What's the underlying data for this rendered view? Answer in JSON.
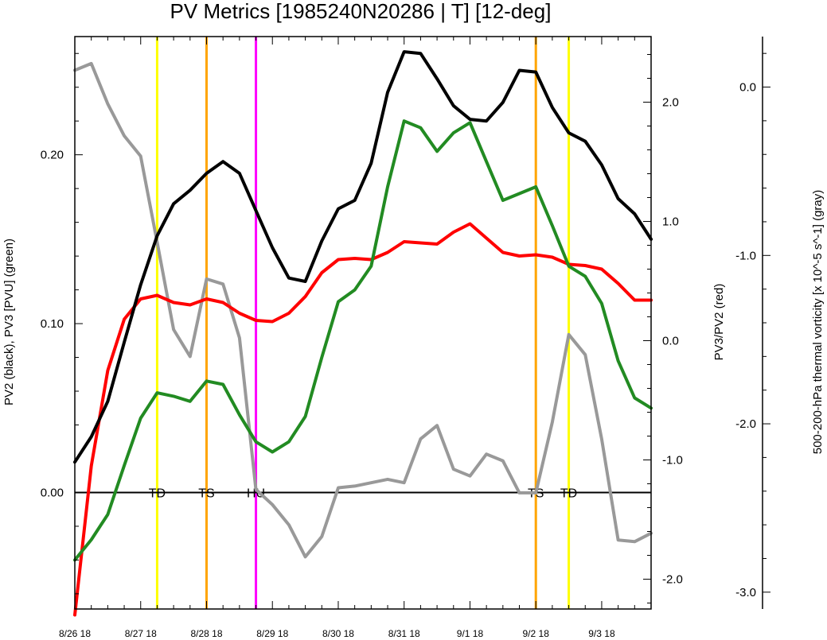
{
  "chart_data": {
    "type": "line",
    "title": "PV Metrics [1985240N20286 | T] [12-deg]",
    "x_ticks": [
      "8/26 18",
      "8/27 18",
      "8/28 18",
      "8/29 18",
      "8/30 18",
      "8/31 18",
      "9/1 18",
      "9/2 18",
      "9/3 18"
    ],
    "x_range_days": [
      0,
      8.75
    ],
    "left_axis": {
      "label": "PV2 (black), PV3 [PVU] (green)",
      "ylim": [
        -0.069,
        0.27
      ],
      "ticks": [
        "0.00",
        "0.10",
        "0.20"
      ],
      "tick_values": [
        0.0,
        0.1,
        0.2
      ]
    },
    "right_axis": {
      "label": "PV3/PV2 (red)",
      "ylim": [
        -2.25,
        2.55
      ],
      "ticks": [
        "-2.0",
        "-1.0",
        "0.0",
        "1.0",
        "2.0"
      ],
      "tick_values": [
        -2.0,
        -1.0,
        0.0,
        1.0,
        2.0
      ]
    },
    "far_right_axis": {
      "label": "500-200-hPa thermal vorticity [x 10^-5 s^-1] (gray)",
      "ylim": [
        -3.1,
        0.3
      ],
      "ticks": [
        "-3.0",
        "-2.0",
        "-1.0",
        "0.0"
      ],
      "tick_values": [
        -3.0,
        -2.0,
        -1.0,
        0.0
      ]
    },
    "zero_line": 0.0,
    "stage_markers": [
      {
        "label": "TD",
        "x": 1.25,
        "color": "#ffff00"
      },
      {
        "label": "TS",
        "x": 2.0,
        "color": "#ffa500"
      },
      {
        "label": "HU",
        "x": 2.75,
        "color": "#ff00ff"
      },
      {
        "label": "TS",
        "x": 7.0,
        "color": "#ffa500"
      },
      {
        "label": "TD",
        "x": 7.5,
        "color": "#ffff00"
      }
    ],
    "series": [
      {
        "name": "PV2",
        "axis": "left",
        "color": "#000000",
        "x": [
          0,
          0.25,
          0.5,
          0.75,
          1.0,
          1.25,
          1.5,
          1.75,
          2.0,
          2.25,
          2.5,
          2.75,
          3.0,
          3.25,
          3.5,
          3.75,
          4.0,
          4.25,
          4.5,
          4.75,
          5.0,
          5.25,
          5.5,
          5.75,
          6.0,
          6.25,
          6.5,
          6.75,
          7.0,
          7.25,
          7.5,
          7.75,
          8.0,
          8.25,
          8.5,
          8.75
        ],
        "y": [
          0.018,
          0.033,
          0.054,
          0.089,
          0.123,
          0.152,
          0.171,
          0.179,
          0.189,
          0.196,
          0.189,
          0.167,
          0.145,
          0.127,
          0.125,
          0.149,
          0.168,
          0.173,
          0.195,
          0.237,
          0.261,
          0.26,
          0.245,
          0.229,
          0.221,
          0.22,
          0.231,
          0.25,
          0.249,
          0.228,
          0.213,
          0.208,
          0.194,
          0.174,
          0.165,
          0.15
        ]
      },
      {
        "name": "PV3",
        "axis": "left",
        "color": "#228b22",
        "x": [
          0,
          0.25,
          0.5,
          0.75,
          1.0,
          1.25,
          1.5,
          1.75,
          2.0,
          2.25,
          2.5,
          2.75,
          3.0,
          3.25,
          3.5,
          3.75,
          4.0,
          4.25,
          4.5,
          4.75,
          5.0,
          5.25,
          5.5,
          5.75,
          6.0,
          6.25,
          6.5,
          6.75,
          7.0,
          7.25,
          7.5,
          7.75,
          8.0,
          8.25,
          8.5,
          8.75
        ],
        "y": [
          -0.04,
          -0.028,
          -0.013,
          0.016,
          0.044,
          0.059,
          0.057,
          0.054,
          0.066,
          0.064,
          0.046,
          0.03,
          0.024,
          0.03,
          0.045,
          0.08,
          0.113,
          0.12,
          0.134,
          0.181,
          0.22,
          0.216,
          0.202,
          0.213,
          0.219,
          0.196,
          0.173,
          0.177,
          0.181,
          0.158,
          0.134,
          0.128,
          0.112,
          0.078,
          0.056,
          0.05
        ]
      },
      {
        "name": "PV3/PV2",
        "axis": "right",
        "color": "#ff0000",
        "x": [
          0,
          0.25,
          0.5,
          0.75,
          1.0,
          1.25,
          1.5,
          1.75,
          2.0,
          2.25,
          2.5,
          2.75,
          3.0,
          3.25,
          3.5,
          3.75,
          4.0,
          4.25,
          4.5,
          4.75,
          5.0,
          5.25,
          5.5,
          5.75,
          6.0,
          6.25,
          6.5,
          6.75,
          7.0,
          7.25,
          7.5,
          7.75,
          8.0,
          8.25,
          8.5,
          8.75
        ],
        "y": [
          -2.3,
          -1.05,
          -0.25,
          0.18,
          0.35,
          0.38,
          0.32,
          0.3,
          0.35,
          0.32,
          0.23,
          0.17,
          0.16,
          0.23,
          0.37,
          0.57,
          0.68,
          0.69,
          0.68,
          0.74,
          0.83,
          0.82,
          0.81,
          0.91,
          0.98,
          0.86,
          0.74,
          0.71,
          0.72,
          0.7,
          0.64,
          0.63,
          0.6,
          0.48,
          0.34,
          0.34
        ]
      },
      {
        "name": "thermal vorticity",
        "axis": "far_right",
        "color": "#999999",
        "x": [
          0,
          0.25,
          0.5,
          0.75,
          1.0,
          1.25,
          1.5,
          1.75,
          2.0,
          2.25,
          2.5,
          2.75,
          3.0,
          3.25,
          3.5,
          3.75,
          4.0,
          4.25,
          4.5,
          4.75,
          5.0,
          5.25,
          5.5,
          5.75,
          6.0,
          6.25,
          6.5,
          6.75,
          7.0,
          7.25,
          7.5,
          7.75,
          8.0,
          8.25,
          8.5,
          8.75
        ],
        "y": [
          0.1,
          0.14,
          -0.1,
          -0.29,
          -0.41,
          -0.92,
          -1.44,
          -1.6,
          -1.14,
          -1.17,
          -1.49,
          -2.39,
          -2.48,
          -2.6,
          -2.79,
          -2.67,
          -2.38,
          -2.37,
          -2.35,
          -2.33,
          -2.35,
          -2.09,
          -2.01,
          -2.27,
          -2.31,
          -2.18,
          -2.22,
          -2.41,
          -2.41,
          -1.99,
          -1.47,
          -1.59,
          -2.09,
          -2.69,
          -2.7,
          -2.65
        ]
      }
    ]
  }
}
